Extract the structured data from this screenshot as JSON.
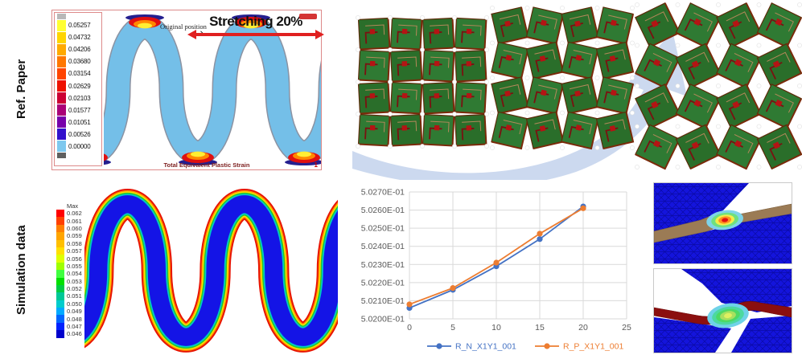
{
  "row_labels": {
    "ref_paper": "Ref. Paper",
    "simulation": "Simulation data"
  },
  "icons": {
    "original_position_arrow": "↘"
  },
  "ref_panel": {
    "original_position": "Original position",
    "stretching": "Stretching 20%",
    "caption": "Total Equivalent Plastic Strain",
    "page_number": "1",
    "legend": {
      "top_cap_color": "#b8b8b8",
      "bottom_cap_color": "#5f5f5f",
      "entries": [
        {
          "value": "0.05257",
          "color": "#ffff33"
        },
        {
          "value": "0.04732",
          "color": "#ffd500"
        },
        {
          "value": "0.04206",
          "color": "#ffaa00"
        },
        {
          "value": "0.03680",
          "color": "#ff7700"
        },
        {
          "value": "0.03154",
          "color": "#ff4400"
        },
        {
          "value": "0.02629",
          "color": "#ee1100"
        },
        {
          "value": "0.02103",
          "color": "#cc0033"
        },
        {
          "value": "0.01577",
          "color": "#aa0077"
        },
        {
          "value": "0.01051",
          "color": "#7700aa"
        },
        {
          "value": "0.00526",
          "color": "#3311cc"
        },
        {
          "value": "0.00000",
          "color": "#7ec8ee"
        }
      ]
    }
  },
  "sim_panel": {
    "legend": {
      "title": "Max",
      "entries": [
        {
          "value": "0.062",
          "color": "#ff0000"
        },
        {
          "value": "0.061",
          "color": "#ff4000"
        },
        {
          "value": "0.060",
          "color": "#ff7f00"
        },
        {
          "value": "0.059",
          "color": "#ffa500"
        },
        {
          "value": "0.058",
          "color": "#ffc000"
        },
        {
          "value": "0.057",
          "color": "#ffe000"
        },
        {
          "value": "0.056",
          "color": "#dfff00"
        },
        {
          "value": "0.055",
          "color": "#9fff00"
        },
        {
          "value": "0.054",
          "color": "#40ff40"
        },
        {
          "value": "0.053",
          "color": "#00e000"
        },
        {
          "value": "0.052",
          "color": "#00cc44"
        },
        {
          "value": "0.051",
          "color": "#00c896"
        },
        {
          "value": "0.050",
          "color": "#00cccc"
        },
        {
          "value": "0.049",
          "color": "#00aaff"
        },
        {
          "value": "0.048",
          "color": "#0066ff"
        },
        {
          "value": "0.047",
          "color": "#0022ff"
        },
        {
          "value": "0.046",
          "color": "#0000cc"
        }
      ]
    }
  },
  "chart_data": {
    "type": "line",
    "title": "",
    "xlabel": "",
    "ylabel": "",
    "x": [
      0,
      5,
      10,
      15,
      20
    ],
    "series": [
      {
        "name": "R_N_X1Y1_001",
        "color": "#4472C4",
        "values": [
          0.50206,
          0.50216,
          0.50229,
          0.50244,
          0.50262
        ]
      },
      {
        "name": "R_P_X1Y1_001",
        "color": "#ED7D31",
        "values": [
          0.50208,
          0.50217,
          0.50231,
          0.50247,
          0.50261
        ]
      }
    ],
    "xlim": [
      0,
      25
    ],
    "ylim": [
      0.502,
      0.5027
    ],
    "x_ticks": [
      "0",
      "5",
      "10",
      "15",
      "20",
      "25"
    ],
    "y_ticks": [
      "5.0200E-01",
      "5.0210E-01",
      "5.0220E-01",
      "5.0230E-01",
      "5.0240E-01",
      "5.0250E-01",
      "5.0260E-01",
      "5.0270E-01"
    ],
    "grid": true,
    "legend_position": "bottom",
    "grid_color": "#d9d9d9",
    "tick_color": "#595959"
  }
}
